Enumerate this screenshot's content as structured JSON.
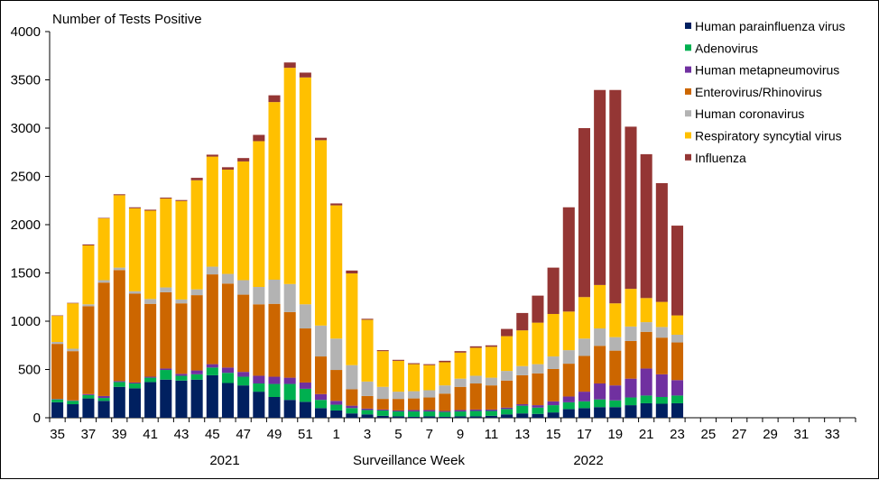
{
  "chart_data": {
    "type": "bar",
    "stacked": true,
    "title": "",
    "ylabel": "Number of Tests Positive",
    "xlabel": "Surveillance Week",
    "ylim": [
      0,
      4000
    ],
    "yticks": [
      0,
      500,
      1000,
      1500,
      2000,
      2500,
      3000,
      3500,
      4000
    ],
    "xtick_labels": [
      "35",
      "37",
      "39",
      "41",
      "43",
      "45",
      "47",
      "49",
      "51",
      "1",
      "3",
      "5",
      "7",
      "9",
      "11",
      "13",
      "15",
      "17",
      "19",
      "21",
      "23",
      "25",
      "27",
      "29",
      "31",
      "33"
    ],
    "year_labels": [
      "2021",
      "2022"
    ],
    "legend_position": "top-right",
    "grid": false,
    "categories": [
      "35",
      "36",
      "37",
      "38",
      "39",
      "40",
      "41",
      "42",
      "43",
      "44",
      "45",
      "46",
      "47",
      "48",
      "49",
      "50",
      "51",
      "52",
      "1",
      "2",
      "3",
      "4",
      "5",
      "6",
      "7",
      "8",
      "9",
      "10",
      "11",
      "12",
      "13",
      "14",
      "15",
      "16",
      "17",
      "18",
      "19",
      "20",
      "21",
      "22",
      "23",
      "24",
      "25",
      "26",
      "27",
      "28",
      "29",
      "30",
      "31",
      "32",
      "33",
      "34"
    ],
    "series": [
      {
        "name": "Human parainfluenza virus",
        "color": "#002060",
        "values": [
          160,
          140,
          200,
          175,
          320,
          305,
          370,
          395,
          385,
          395,
          440,
          360,
          335,
          270,
          215,
          185,
          165,
          100,
          75,
          45,
          35,
          20,
          15,
          10,
          15,
          10,
          15,
          15,
          20,
          35,
          45,
          40,
          55,
          90,
          100,
          110,
          110,
          130,
          150,
          145,
          150,
          null,
          null,
          null,
          null,
          null,
          null,
          null,
          null,
          null,
          null,
          null
        ]
      },
      {
        "name": "Adenovirus",
        "color": "#00B050",
        "values": [
          30,
          35,
          35,
          30,
          50,
          50,
          45,
          100,
          50,
          55,
          80,
          105,
          90,
          85,
          135,
          165,
          135,
          85,
          60,
          55,
          45,
          55,
          50,
          55,
          50,
          50,
          50,
          55,
          50,
          55,
          80,
          65,
          75,
          70,
          70,
          80,
          70,
          80,
          80,
          70,
          80,
          null,
          null,
          null,
          null,
          null,
          null,
          null,
          null,
          null,
          null,
          null
        ]
      },
      {
        "name": "Human metapneumovirus",
        "color": "#7030A0",
        "values": [
          5,
          5,
          10,
          20,
          10,
          10,
          10,
          15,
          20,
          40,
          35,
          55,
          50,
          80,
          75,
          65,
          65,
          60,
          40,
          25,
          15,
          10,
          10,
          15,
          15,
          10,
          15,
          15,
          15,
          15,
          15,
          25,
          40,
          60,
          100,
          165,
          155,
          195,
          280,
          235,
          160,
          null,
          null,
          null,
          null,
          null,
          null,
          null,
          null,
          null,
          null,
          null
        ]
      },
      {
        "name": "Enterovirus/Rhinovirus",
        "color": "#CC6600",
        "values": [
          570,
          510,
          910,
          1175,
          1150,
          920,
          755,
          790,
          730,
          780,
          930,
          870,
          800,
          740,
          755,
          680,
          560,
          390,
          320,
          170,
          130,
          110,
          120,
          120,
          130,
          180,
          240,
          270,
          250,
          280,
          300,
          330,
          335,
          340,
          370,
          390,
          360,
          390,
          380,
          380,
          390,
          null,
          null,
          null,
          null,
          null,
          null,
          null,
          null,
          null,
          null,
          null
        ]
      },
      {
        "name": "Human coronavirus",
        "color": "#B3B3B3",
        "values": [
          20,
          25,
          20,
          25,
          25,
          25,
          50,
          50,
          40,
          60,
          80,
          100,
          150,
          180,
          250,
          290,
          250,
          320,
          325,
          250,
          150,
          125,
          75,
          75,
          75,
          85,
          85,
          80,
          80,
          100,
          95,
          95,
          130,
          140,
          180,
          180,
          140,
          150,
          100,
          110,
          80,
          null,
          null,
          null,
          null,
          null,
          null,
          null,
          null,
          null,
          null,
          null
        ]
      },
      {
        "name": "Respiratory syncytial virus",
        "color": "#FFC000",
        "values": [
          270,
          470,
          610,
          640,
          750,
          860,
          915,
          920,
          1020,
          1130,
          1140,
          1080,
          1230,
          1510,
          1840,
          2240,
          2350,
          1920,
          1380,
          950,
          640,
          370,
          320,
          280,
          260,
          240,
          270,
          290,
          320,
          360,
          370,
          430,
          440,
          400,
          430,
          450,
          350,
          390,
          250,
          260,
          200,
          null,
          null,
          null,
          null,
          null,
          null,
          null,
          null,
          null,
          null,
          null
        ]
      },
      {
        "name": "Influenza",
        "color": "#943634",
        "values": [
          5,
          5,
          10,
          5,
          10,
          10,
          10,
          10,
          10,
          25,
          20,
          25,
          35,
          65,
          70,
          55,
          50,
          25,
          20,
          30,
          10,
          10,
          10,
          10,
          10,
          15,
          15,
          15,
          15,
          75,
          180,
          280,
          480,
          1080,
          1750,
          2020,
          2210,
          1680,
          1490,
          1230,
          930,
          null,
          null,
          null,
          null,
          null,
          null,
          null,
          null,
          null,
          null,
          null
        ]
      }
    ]
  }
}
